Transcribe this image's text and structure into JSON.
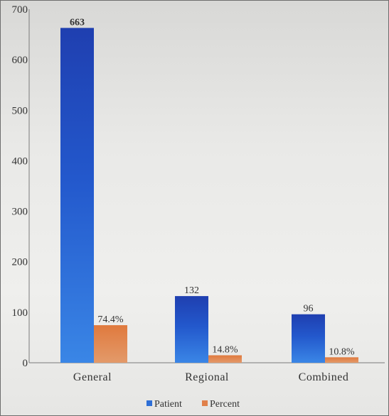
{
  "chart_data": {
    "type": "bar",
    "title": "",
    "xlabel": "",
    "ylabel": "",
    "categories": [
      "General",
      "Regional",
      "Combined"
    ],
    "series": [
      {
        "name": "Patient",
        "values": [
          663,
          132,
          96
        ],
        "labels": [
          "663",
          "132",
          "96"
        ],
        "color": "#2f6fd6"
      },
      {
        "name": "Percent",
        "values": [
          74.4,
          14.8,
          10.8
        ],
        "labels": [
          "74.4%",
          "14.8%",
          "10.8%"
        ],
        "color": "#e0804a"
      }
    ],
    "ylim": [
      0,
      700
    ],
    "yticks": [
      0,
      100,
      200,
      300,
      400,
      500,
      600,
      700
    ],
    "grid": false,
    "legend_position": "bottom"
  }
}
